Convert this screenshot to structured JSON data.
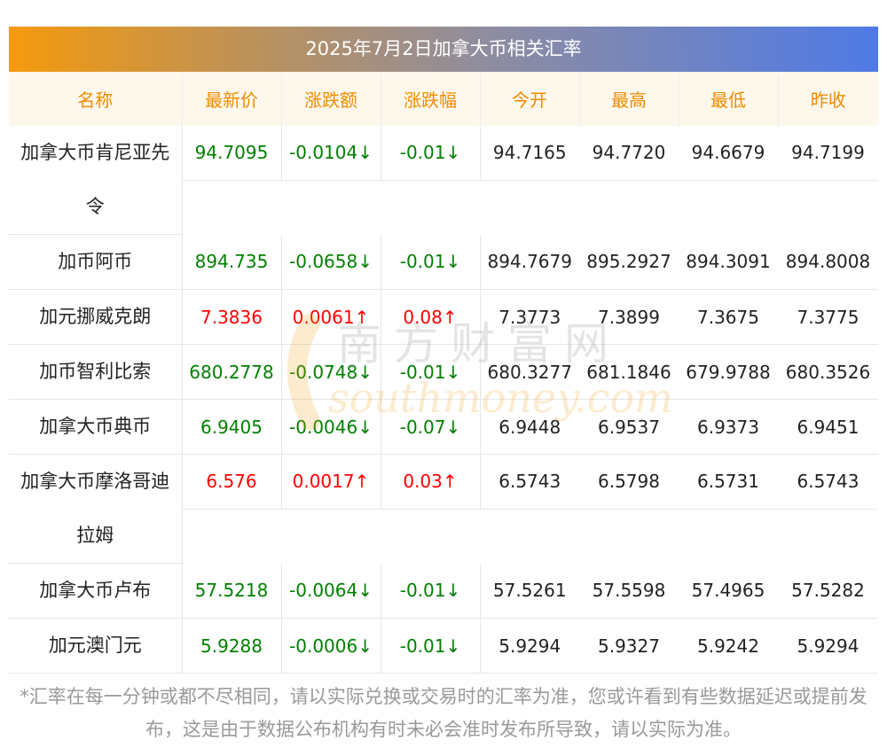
{
  "title": "2025年7月2日加拿大币相关汇率",
  "headers": [
    "名称",
    "最新价",
    "涨跌额",
    "涨跌幅",
    "今开",
    "最高",
    "最低",
    "昨收"
  ],
  "rows": [
    {
      "name_l1": "加拿大币肯尼亚先",
      "name_l2": "令",
      "latest": "94.7095",
      "change": "-0.0104↓",
      "pct": "-0.01↓",
      "open": "94.7165",
      "high": "94.7720",
      "low": "94.6679",
      "prev": "94.7199",
      "dir": "down"
    },
    {
      "name_l1": "加币阿币",
      "name_l2": "",
      "latest": "894.735",
      "change": "-0.0658↓",
      "pct": "-0.01↓",
      "open": "894.7679",
      "high": "895.2927",
      "low": "894.3091",
      "prev": "894.8008",
      "dir": "down"
    },
    {
      "name_l1": "加元挪威克朗",
      "name_l2": "",
      "latest": "7.3836",
      "change": "0.0061↑",
      "pct": "0.08↑",
      "open": "7.3773",
      "high": "7.3899",
      "low": "7.3675",
      "prev": "7.3775",
      "dir": "up"
    },
    {
      "name_l1": "加币智利比索",
      "name_l2": "",
      "latest": "680.2778",
      "change": "-0.0748↓",
      "pct": "-0.01↓",
      "open": "680.3277",
      "high": "681.1846",
      "low": "679.9788",
      "prev": "680.3526",
      "dir": "down"
    },
    {
      "name_l1": "加拿大币典币",
      "name_l2": "",
      "latest": "6.9405",
      "change": "-0.0046↓",
      "pct": "-0.07↓",
      "open": "6.9448",
      "high": "6.9537",
      "low": "6.9373",
      "prev": "6.9451",
      "dir": "down"
    },
    {
      "name_l1": "加拿大币摩洛哥迪",
      "name_l2": "拉姆",
      "latest": "6.576",
      "change": "0.0017↑",
      "pct": "0.03↑",
      "open": "6.5743",
      "high": "6.5798",
      "low": "6.5731",
      "prev": "6.5743",
      "dir": "up"
    },
    {
      "name_l1": "加拿大币卢布",
      "name_l2": "",
      "latest": "57.5218",
      "change": "-0.0064↓",
      "pct": "-0.01↓",
      "open": "57.5261",
      "high": "57.5598",
      "low": "57.4965",
      "prev": "57.5282",
      "dir": "down"
    },
    {
      "name_l1": "加元澳门元",
      "name_l2": "",
      "latest": "5.9288",
      "change": "-0.0006↓",
      "pct": "-0.01↓",
      "open": "5.9294",
      "high": "5.9327",
      "low": "5.9242",
      "prev": "5.9294",
      "dir": "down"
    }
  ],
  "watermark": {
    "cn": "南方财富网",
    "en": "southmoney.com"
  },
  "footnote": "*汇率在每一分钟或都不尽相同，请以实际兑换或交易时的汇率为准，您或许看到有些数据延迟或提前发布，这是由于数据公布机构有时未必会准时发布所导致，请以实际为准。",
  "colors": {
    "up": "#ff0000",
    "down": "#008000",
    "header_text": "#f08c00",
    "title_gradient_start": "#f59a0c",
    "title_gradient_end": "#4f7ae6"
  }
}
